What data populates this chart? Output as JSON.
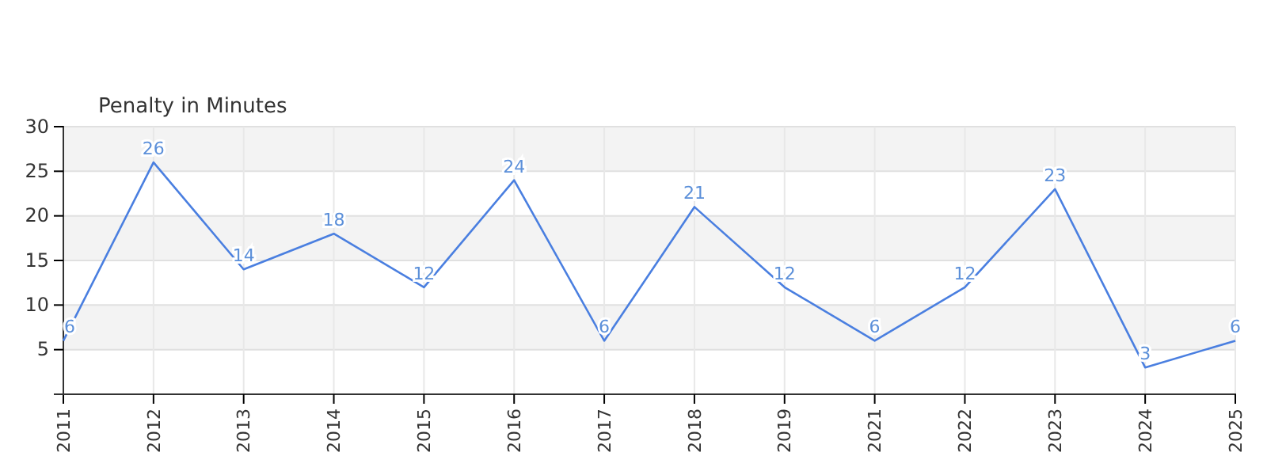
{
  "chart_data": {
    "type": "line",
    "title": "Penalty in Minutes",
    "categories": [
      "2011",
      "2012",
      "2013",
      "2014",
      "2015",
      "2016",
      "2017",
      "2018",
      "2019",
      "2021",
      "2022",
      "2023",
      "2024",
      "2025"
    ],
    "series": [
      {
        "color": "#4a7fe0",
        "values": [
          6,
          26,
          14,
          18,
          12,
          24,
          6,
          21,
          12,
          6,
          12,
          23,
          3,
          6
        ]
      }
    ],
    "ylim": [
      0,
      30
    ],
    "yticks": [
      5,
      10,
      15,
      20,
      25,
      30
    ],
    "grid": true,
    "data_labels": true,
    "marker": "none",
    "line_style": "solid"
  }
}
